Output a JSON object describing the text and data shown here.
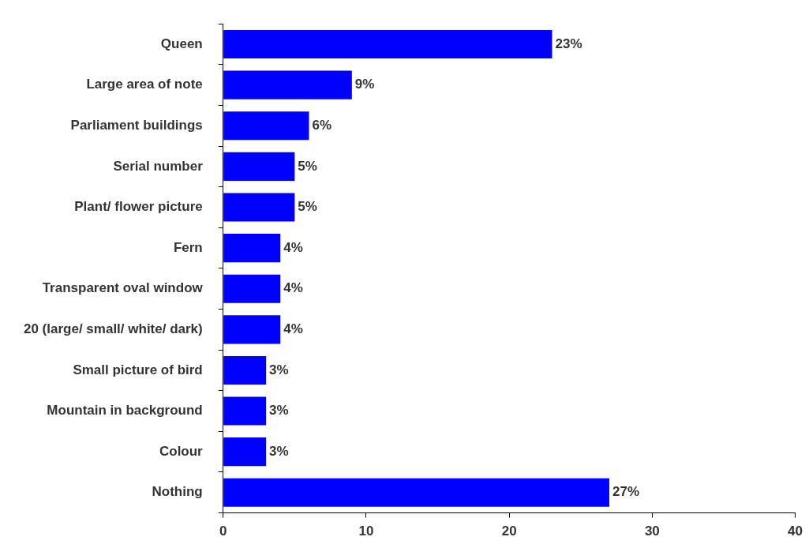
{
  "chart_data": {
    "type": "bar",
    "orientation": "horizontal",
    "categories": [
      "Queen",
      "Large area of note",
      "Parliament buildings",
      "Serial number",
      "Plant/ flower picture",
      "Fern",
      "Transparent oval window",
      "20 (large/ small/ white/ dark)",
      "Small picture of bird",
      "Mountain in background",
      "Colour",
      "Nothing"
    ],
    "values": [
      23,
      9,
      6,
      5,
      5,
      4,
      4,
      4,
      3,
      3,
      3,
      27
    ],
    "value_labels": [
      "23%",
      "9%",
      "6%",
      "5%",
      "5%",
      "4%",
      "4%",
      "4%",
      "3%",
      "3%",
      "3%",
      "27%"
    ],
    "color": "#0000ff",
    "xlim": [
      0,
      40
    ],
    "xticks": [
      0,
      10,
      20,
      30,
      40
    ],
    "grid": false,
    "legend": false
  }
}
